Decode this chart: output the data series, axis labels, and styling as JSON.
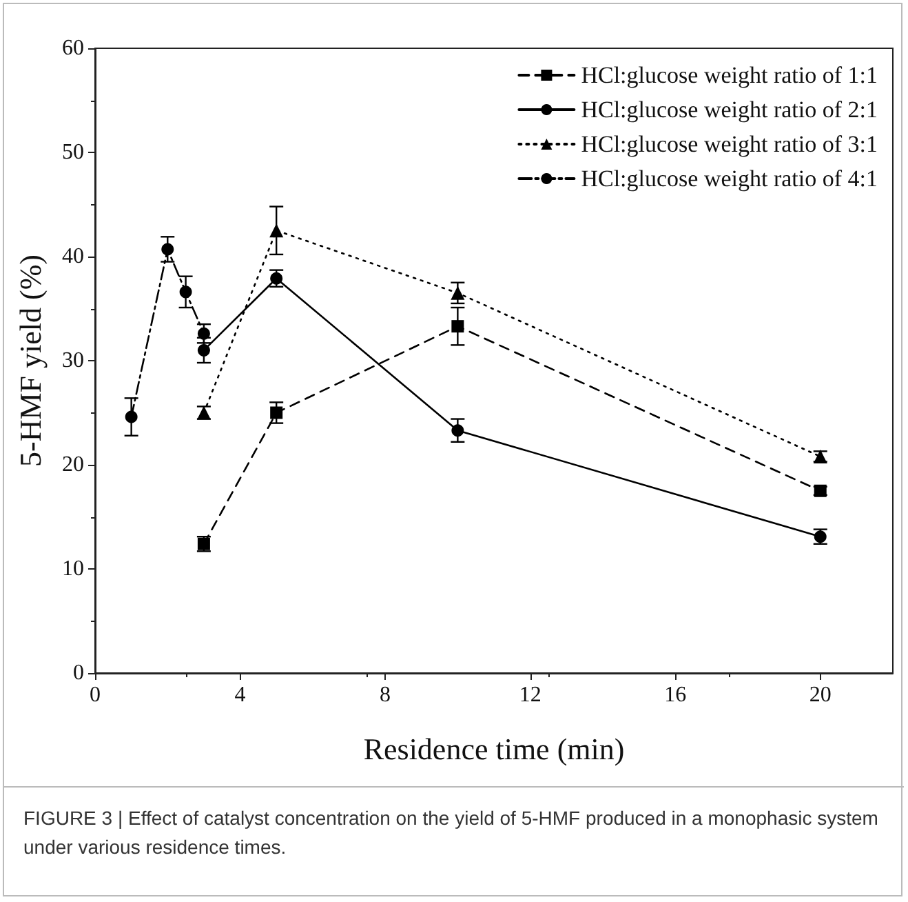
{
  "chart_data": {
    "type": "line",
    "xlabel": "Residence time (min)",
    "ylabel": "5-HMF yield (%)",
    "xlim": [
      0,
      22
    ],
    "xticks": [
      0,
      4,
      8,
      12,
      16,
      20
    ],
    "ylim": [
      0,
      60
    ],
    "yticks": [
      0,
      10,
      20,
      30,
      40,
      50,
      60
    ],
    "grid": false,
    "legend": "top right",
    "series": [
      {
        "name": "HCl:glucose weight ratio of 1:1",
        "color": "#000000",
        "marker": "square",
        "line_style": "dashed",
        "x": [
          3,
          5,
          10,
          20
        ],
        "values": [
          12.4,
          25.0,
          33.3,
          17.5
        ],
        "errors": [
          0.7,
          1.0,
          1.8,
          0.4
        ]
      },
      {
        "name": "HCl:glucose weight ratio of 2:1",
        "color": "#000000",
        "marker": "circle",
        "line_style": "solid",
        "x": [
          3,
          5,
          10,
          20
        ],
        "values": [
          31.0,
          37.9,
          23.3,
          13.1
        ],
        "errors": [
          1.2,
          0.8,
          1.1,
          0.7
        ]
      },
      {
        "name": "HCl:glucose weight ratio of 3:1",
        "color": "#000000",
        "marker": "triangle",
        "line_style": "dotted",
        "x": [
          3,
          5,
          10,
          20
        ],
        "values": [
          25.0,
          42.5,
          36.5,
          20.8
        ],
        "errors": [
          0.6,
          2.3,
          1.0,
          0.5
        ]
      },
      {
        "name": "HCl:glucose weight ratio of 4:1",
        "color": "#000000",
        "marker": "circle",
        "line_style": "dashdot",
        "x": [
          1,
          2,
          2.5,
          3
        ],
        "values": [
          24.6,
          40.7,
          36.6,
          32.6
        ],
        "errors": [
          1.8,
          1.2,
          1.5,
          0.9
        ]
      }
    ],
    "annotations": [
      "FIGURE 3 | Effect of catalyst concentration on the yield of 5-HMF produced in a monophasic system under various residence times."
    ]
  }
}
